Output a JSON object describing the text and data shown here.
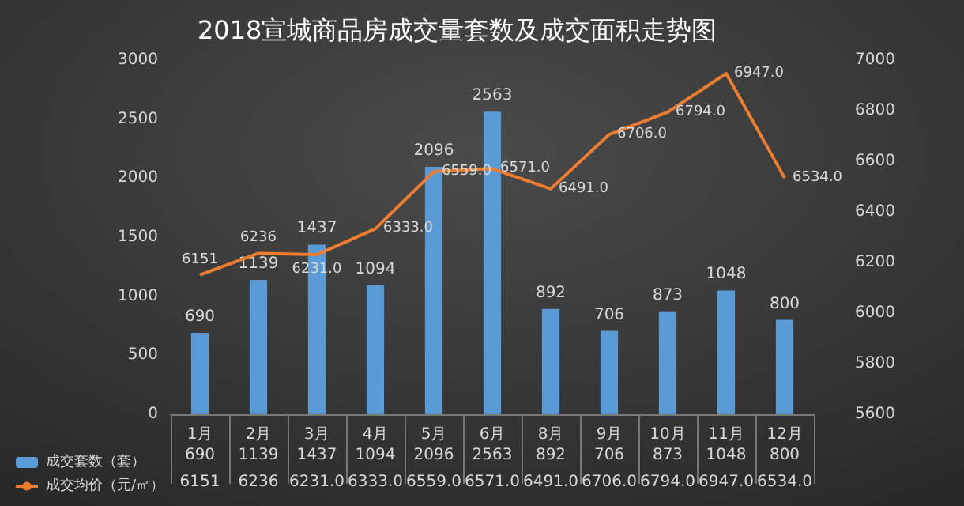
{
  "chart_data": {
    "type": "bar",
    "title": "2018宣城商品房成交量套数及成交面积走势图",
    "categories": [
      "1月",
      "2月",
      "3月",
      "4月",
      "5月",
      "6月",
      "8月",
      "9月",
      "10月",
      "11月",
      "12月"
    ],
    "series": [
      {
        "name": "成交套数（套）",
        "type": "bar",
        "color": "#5b9bd5",
        "values": [
          690,
          1139,
          1437,
          1094,
          2096,
          2563,
          892,
          706,
          873,
          1048,
          800
        ],
        "value_labels": [
          "690",
          "1139",
          "1437",
          "1094",
          "2096",
          "2563",
          "892",
          "706",
          "873",
          "1048",
          "800"
        ]
      },
      {
        "name": "成交均价（元/㎡）",
        "type": "line",
        "axis": "y2",
        "color": "#ed7d31",
        "marker": "none",
        "values": [
          6151,
          6236,
          6231,
          6333,
          6559,
          6571,
          6491,
          6706,
          6794,
          6947,
          6534
        ],
        "value_labels": [
          "6151",
          "6236",
          "6231.0",
          "6333.0",
          "6559.0",
          "6571.0",
          "6491.0",
          "6706.0",
          "6794.0",
          "6947.0",
          "6534.0"
        ]
      }
    ],
    "ylim": [
      0,
      3000
    ],
    "yticks": [
      0,
      500,
      1000,
      1500,
      2000,
      2500,
      3000
    ],
    "y2lim": [
      5600,
      7000
    ],
    "y2ticks": [
      5600,
      5800,
      6000,
      6200,
      6400,
      6600,
      6800,
      7000
    ],
    "data_labels": true,
    "grid": false,
    "legend": "bottom left"
  }
}
